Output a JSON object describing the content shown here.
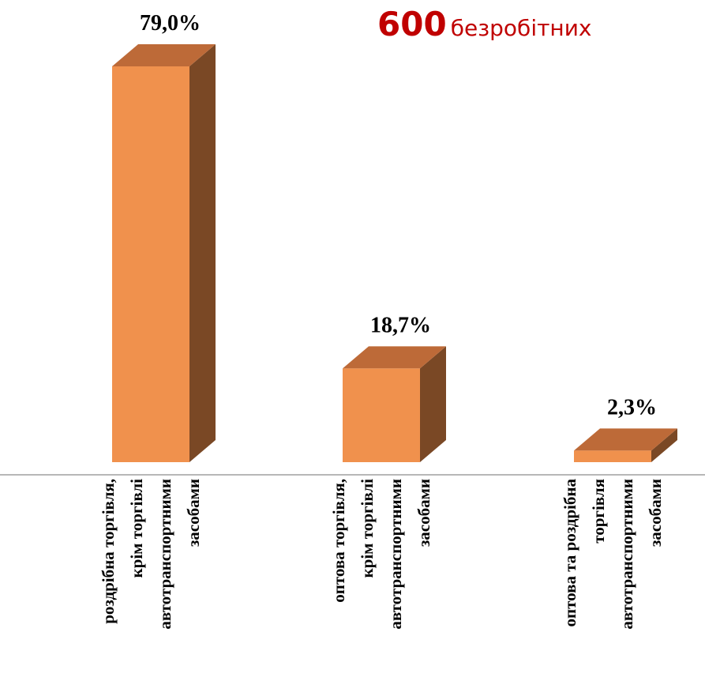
{
  "headline": {
    "count": "600",
    "label": "безробітних"
  },
  "colors": {
    "front": "#f0914d",
    "top": "#bd6a38",
    "side": "#7a4825",
    "axis": "#8c8c8c",
    "headline": "#c00000"
  },
  "chart_data": {
    "type": "bar",
    "title": "",
    "xlabel": "",
    "ylabel": "",
    "ylim": [
      0,
      79.0
    ],
    "grid": false,
    "legend": "none",
    "categories": [
      [
        "роздрібна торгівля,",
        "крім торгівлі",
        "автотранспортними",
        "засобами"
      ],
      [
        "оптова торгівля,",
        "крім торгівлі",
        "автотранспортними",
        "засобами"
      ],
      [
        "оптова та роздрібна",
        "торгівля",
        "автотранспортними",
        "засобами"
      ]
    ],
    "values": [
      79.0,
      18.7,
      2.3
    ],
    "data_labels": [
      "79,0%",
      "18,7%",
      "2,3%"
    ]
  }
}
